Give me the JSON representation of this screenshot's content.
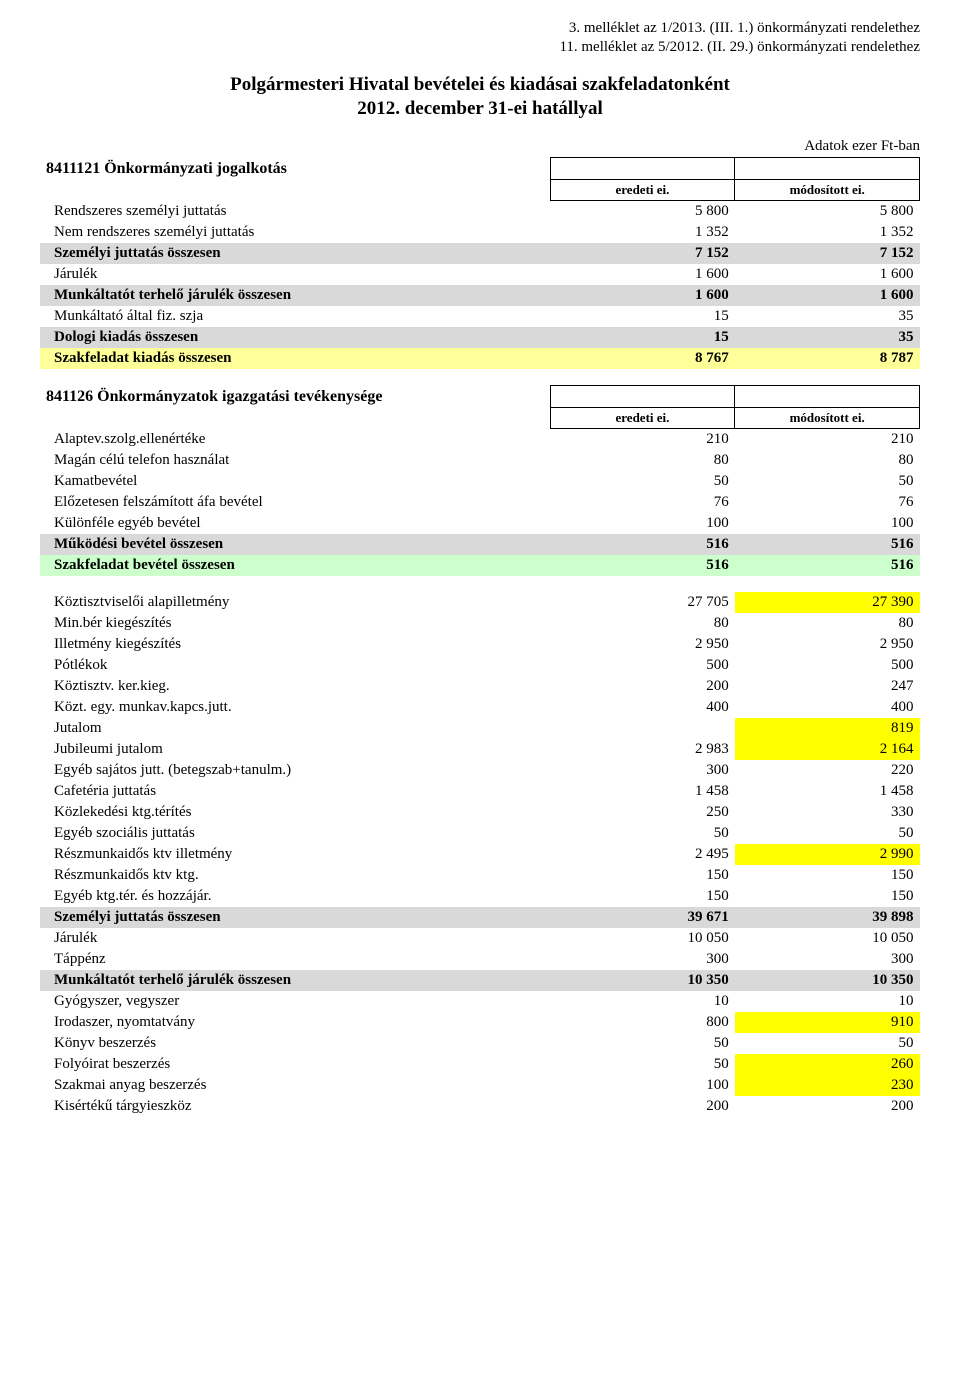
{
  "colors": {
    "gray_subtotal": "#d9d9d9",
    "gray_subtotal_text": "#000000",
    "yellow_subtotal": "#ffff99",
    "green_subtotal": "#ccffcc",
    "changed_highlight": "#ffff00",
    "border": "#000000",
    "text": "#000000",
    "background": "#ffffff"
  },
  "fonts": {
    "body_pt": 15,
    "title_pt": 19,
    "colhead_pt": 13
  },
  "header": {
    "ref1": "3. melléklet az 1/2013. (III. 1.) önkormányzati rendelethez",
    "ref2": "11. melléklet az 5/2012. (II. 29.) önkormányzati rendelethez",
    "title": "Polgármesteri Hivatal bevételei és kiadásai szakfeladatonként",
    "subtitle": "2012. december 31-ei hatállyal",
    "unit": "Adatok ezer Ft-ban"
  },
  "columns": {
    "col1": "eredeti ei.",
    "col2": "módosított ei."
  },
  "section1": {
    "title": "8411121 Önkormányzati jogalkotás",
    "rows": [
      {
        "label": "Rendszeres személyi juttatás",
        "v1": "5 800",
        "v2": "5 800",
        "style": ""
      },
      {
        "label": "Nem rendszeres személyi juttatás",
        "v1": "1 352",
        "v2": "1 352",
        "style": ""
      },
      {
        "label": "Személyi juttatás összesen",
        "v1": "7 152",
        "v2": "7 152",
        "style": "gray",
        "bold": true
      },
      {
        "label": "Járulék",
        "v1": "1 600",
        "v2": "1 600",
        "style": ""
      },
      {
        "label": "Munkáltatót terhelő járulék összesen",
        "v1": "1 600",
        "v2": "1 600",
        "style": "gray",
        "bold": true
      },
      {
        "label": "Munkáltató által fiz. szja",
        "v1": "15",
        "v2": "35",
        "style": ""
      },
      {
        "label": "Dologi kiadás összesen",
        "v1": "15",
        "v2": "35",
        "style": "gray",
        "bold": true
      },
      {
        "label": "Szakfeladat kiadás összesen",
        "v1": "8 767",
        "v2": "8 787",
        "style": "yellow",
        "bold": true
      }
    ]
  },
  "section2": {
    "title": "841126 Önkormányzatok igazgatási tevékenysége",
    "rows_a": [
      {
        "label": "Alaptev.szolg.ellenértéke",
        "v1": "210",
        "v2": "210",
        "style": ""
      },
      {
        "label": "Magán célú telefon használat",
        "v1": "80",
        "v2": "80",
        "style": ""
      },
      {
        "label": "Kamatbevétel",
        "v1": "50",
        "v2": "50",
        "style": ""
      },
      {
        "label": "Előzetesen felszámított áfa bevétel",
        "v1": "76",
        "v2": "76",
        "style": ""
      },
      {
        "label": "Különféle egyéb bevétel",
        "v1": "100",
        "v2": "100",
        "style": ""
      },
      {
        "label": "Működési bevétel összesen",
        "v1": "516",
        "v2": "516",
        "style": "gray",
        "bold": true
      },
      {
        "label": "Szakfeladat bevétel összesen",
        "v1": "516",
        "v2": "516",
        "style": "green",
        "bold": true
      }
    ],
    "rows_b": [
      {
        "label": "Köztisztviselői alapilletmény",
        "v1": "27 705",
        "v2": "27 390",
        "hl2": true
      },
      {
        "label": "Min.bér kiegészítés",
        "v1": "80",
        "v2": "80"
      },
      {
        "label": "Illetmény kiegészítés",
        "v1": "2 950",
        "v2": "2 950"
      },
      {
        "label": "Pótlékok",
        "v1": "500",
        "v2": "500"
      },
      {
        "label": "Köztisztv. ker.kieg.",
        "v1": "200",
        "v2": "247"
      },
      {
        "label": "Közt. egy. munkav.kapcs.jutt.",
        "v1": "400",
        "v2": "400"
      },
      {
        "label": "Jutalom",
        "v1": "",
        "v2": "819",
        "hl2": true
      },
      {
        "label": "Jubileumi jutalom",
        "v1": "2 983",
        "v2": "2 164",
        "hl2": true
      },
      {
        "label": "Egyéb sajátos jutt. (betegszab+tanulm.)",
        "v1": "300",
        "v2": "220"
      },
      {
        "label": "Cafetéria juttatás",
        "v1": "1 458",
        "v2": "1 458"
      },
      {
        "label": "Közlekedési ktg.térítés",
        "v1": "250",
        "v2": "330"
      },
      {
        "label": "Egyéb szociális juttatás",
        "v1": "50",
        "v2": "50"
      },
      {
        "label": "Részmunkaidős ktv illetmény",
        "v1": "2 495",
        "v2": "2 990",
        "hl2": true
      },
      {
        "label": "Részmunkaidős ktv ktg.",
        "v1": "150",
        "v2": "150"
      },
      {
        "label": "Egyéb ktg.tér. és hozzájár.",
        "v1": "150",
        "v2": "150"
      },
      {
        "label": "Személyi juttatás összesen",
        "v1": "39 671",
        "v2": "39 898",
        "style": "gray",
        "bold": true
      },
      {
        "label": "Járulék",
        "v1": "10 050",
        "v2": "10 050"
      },
      {
        "label": "Táppénz",
        "v1": "300",
        "v2": "300"
      },
      {
        "label": "Munkáltatót terhelő járulék összesen",
        "v1": "10 350",
        "v2": "10 350",
        "style": "gray",
        "bold": true
      },
      {
        "label": "Gyógyszer, vegyszer",
        "v1": "10",
        "v2": "10"
      },
      {
        "label": "Irodaszer, nyomtatvány",
        "v1": "800",
        "v2": "910",
        "hl2": true
      },
      {
        "label": "Könyv beszerzés",
        "v1": "50",
        "v2": "50"
      },
      {
        "label": "Folyóirat beszerzés",
        "v1": "50",
        "v2": "260",
        "hl2": true
      },
      {
        "label": "Szakmai anyag beszerzés",
        "v1": "100",
        "v2": "230",
        "hl2": true
      },
      {
        "label": "Kisértékű tárgyieszköz",
        "v1": "200",
        "v2": "200"
      }
    ]
  }
}
